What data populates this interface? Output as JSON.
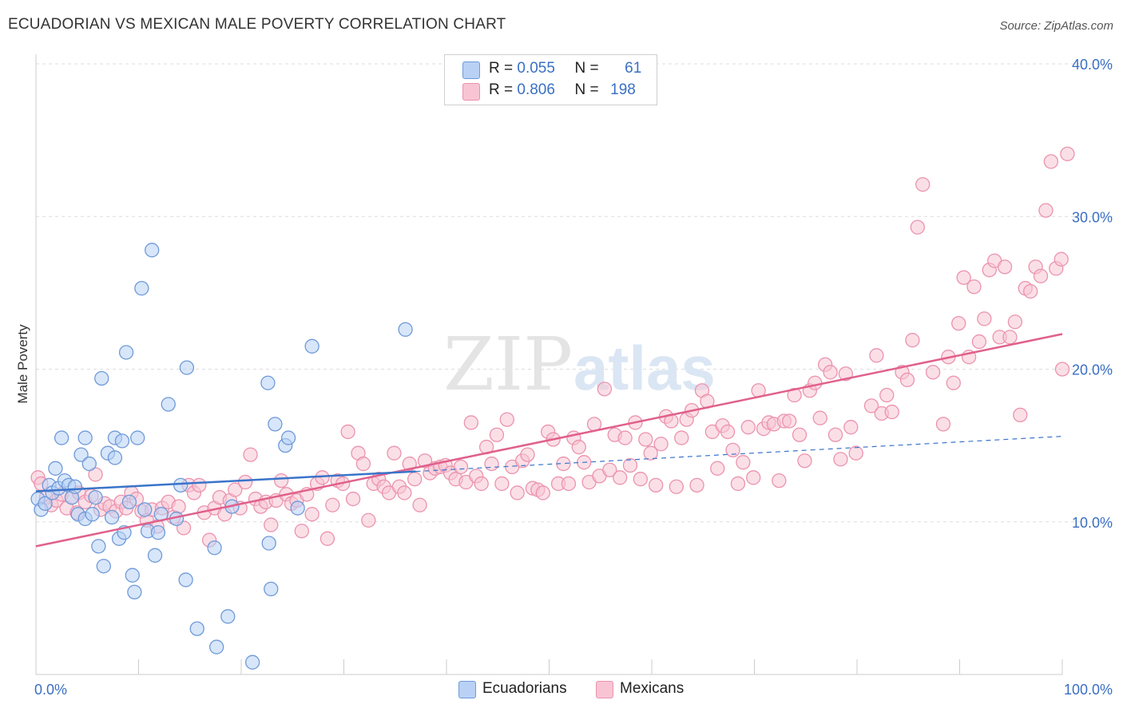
{
  "header": {
    "title": "ECUADORIAN VS MEXICAN MALE POVERTY CORRELATION CHART",
    "source": "Source: ZipAtlas.com"
  },
  "watermark": {
    "part1": "ZIP",
    "part2": "atlas"
  },
  "legend": {
    "rows": [
      {
        "r_label": "R =",
        "r_value": "0.055",
        "n_label": "N =",
        "n_value": "61"
      },
      {
        "r_label": "R =",
        "r_value": "0.806",
        "n_label": "N =",
        "n_value": "198"
      }
    ]
  },
  "bottom_legend": [
    "Ecuadorians",
    "Mexicans"
  ],
  "colors": {
    "ecuadorian_fill": "#b8d1f5",
    "ecuadorian_stroke": "#6f9ad8",
    "ecuadorian_line": "#3a74c9",
    "mexican_fill": "#f8c4d4",
    "mexican_stroke": "#eb93ae",
    "mexican_line": "#e0608c",
    "tick_label": "#3a6fc4",
    "grid": "#dddddd"
  },
  "chart_data": {
    "type": "scatter",
    "ylabel": "Male Poverty",
    "xlim": [
      0,
      100
    ],
    "ylim": [
      0,
      40
    ],
    "x_tick_labels": [
      "0.0%",
      "100.0%"
    ],
    "y_ticks": [
      10,
      20,
      30,
      40
    ],
    "y_tick_labels": [
      "10.0%",
      "20.0%",
      "30.0%",
      "40.0%"
    ],
    "grid": true,
    "series": [
      {
        "name": "Ecuadorians",
        "trend": {
          "x": [
            0,
            37
          ],
          "y": [
            12.0,
            13.3
          ],
          "dashed_extension": {
            "x": [
              37,
              100
            ],
            "y": [
              13.3,
              15.6
            ]
          }
        },
        "points": [
          [
            0.2,
            11.5
          ],
          [
            0.5,
            10.8
          ],
          [
            0.9,
            11.2
          ],
          [
            1.3,
            12.4
          ],
          [
            1.6,
            11.9
          ],
          [
            1.9,
            13.5
          ],
          [
            2.2,
            12.2
          ],
          [
            2.5,
            15.5
          ],
          [
            2.8,
            12.7
          ],
          [
            3.2,
            12.4
          ],
          [
            3.5,
            11.6
          ],
          [
            3.8,
            12.3
          ],
          [
            4.1,
            10.5
          ],
          [
            4.4,
            14.4
          ],
          [
            4.8,
            10.2
          ],
          [
            4.8,
            15.5
          ],
          [
            5.2,
            13.8
          ],
          [
            5.5,
            10.5
          ],
          [
            5.8,
            11.6
          ],
          [
            6.1,
            8.4
          ],
          [
            6.4,
            19.4
          ],
          [
            6.6,
            7.1
          ],
          [
            7.0,
            14.5
          ],
          [
            7.4,
            10.3
          ],
          [
            7.7,
            15.5
          ],
          [
            7.7,
            14.2
          ],
          [
            8.1,
            8.9
          ],
          [
            8.4,
            15.3
          ],
          [
            8.6,
            9.3
          ],
          [
            8.8,
            21.1
          ],
          [
            9.1,
            11.3
          ],
          [
            9.4,
            6.5
          ],
          [
            9.6,
            5.4
          ],
          [
            9.9,
            15.5
          ],
          [
            10.3,
            25.3
          ],
          [
            10.6,
            10.8
          ],
          [
            10.9,
            9.4
          ],
          [
            11.3,
            27.8
          ],
          [
            11.6,
            7.8
          ],
          [
            11.9,
            9.3
          ],
          [
            12.2,
            10.5
          ],
          [
            12.9,
            17.7
          ],
          [
            13.7,
            10.2
          ],
          [
            14.1,
            12.4
          ],
          [
            14.6,
            6.2
          ],
          [
            14.7,
            20.1
          ],
          [
            15.7,
            3.0
          ],
          [
            17.4,
            8.3
          ],
          [
            17.6,
            1.8
          ],
          [
            18.7,
            3.8
          ],
          [
            19.1,
            11.0
          ],
          [
            21.1,
            0.8
          ],
          [
            22.6,
            19.1
          ],
          [
            22.7,
            8.6
          ],
          [
            22.9,
            5.6
          ],
          [
            23.3,
            16.4
          ],
          [
            24.3,
            15.0
          ],
          [
            24.6,
            15.5
          ],
          [
            25.5,
            10.9
          ],
          [
            26.9,
            21.5
          ],
          [
            36.0,
            22.6
          ]
        ]
      },
      {
        "name": "Mexicans",
        "trend": {
          "x": [
            0,
            100
          ],
          "y": [
            8.4,
            22.3
          ]
        },
        "points": [
          [
            0.2,
            12.9
          ],
          [
            0.5,
            12.5
          ],
          [
            1.0,
            11.6
          ],
          [
            1.5,
            11.1
          ],
          [
            2.0,
            11.4
          ],
          [
            2.5,
            11.8
          ],
          [
            3.0,
            10.9
          ],
          [
            3.5,
            11.6
          ],
          [
            4.0,
            10.6
          ],
          [
            4.2,
            11.9
          ],
          [
            4.8,
            11.3
          ],
          [
            5.4,
            11.7
          ],
          [
            5.8,
            13.1
          ],
          [
            6.3,
            10.8
          ],
          [
            6.7,
            11.2
          ],
          [
            7.2,
            11.0
          ],
          [
            7.8,
            10.7
          ],
          [
            8.3,
            11.3
          ],
          [
            8.8,
            10.9
          ],
          [
            9.3,
            11.9
          ],
          [
            9.8,
            11.5
          ],
          [
            10.3,
            10.7
          ],
          [
            10.8,
            10.1
          ],
          [
            11.3,
            10.8
          ],
          [
            11.8,
            9.7
          ],
          [
            12.3,
            10.9
          ],
          [
            12.9,
            11.3
          ],
          [
            13.4,
            10.3
          ],
          [
            13.9,
            11.0
          ],
          [
            14.4,
            9.6
          ],
          [
            14.9,
            12.4
          ],
          [
            15.4,
            11.9
          ],
          [
            15.9,
            12.4
          ],
          [
            16.4,
            10.6
          ],
          [
            16.9,
            8.8
          ],
          [
            17.4,
            10.9
          ],
          [
            17.9,
            11.6
          ],
          [
            18.4,
            10.5
          ],
          [
            18.9,
            11.4
          ],
          [
            19.4,
            12.1
          ],
          [
            19.9,
            10.9
          ],
          [
            20.4,
            12.6
          ],
          [
            20.9,
            14.4
          ],
          [
            21.4,
            11.5
          ],
          [
            21.9,
            11.0
          ],
          [
            22.4,
            11.3
          ],
          [
            22.9,
            9.8
          ],
          [
            23.4,
            11.4
          ],
          [
            23.9,
            12.7
          ],
          [
            24.4,
            11.8
          ],
          [
            24.9,
            11.2
          ],
          [
            25.4,
            11.4
          ],
          [
            25.9,
            9.4
          ],
          [
            26.4,
            11.8
          ],
          [
            26.9,
            10.5
          ],
          [
            27.4,
            12.5
          ],
          [
            27.9,
            12.9
          ],
          [
            28.4,
            8.9
          ],
          [
            28.9,
            11.1
          ],
          [
            29.4,
            12.7
          ],
          [
            29.9,
            12.5
          ],
          [
            30.4,
            15.9
          ],
          [
            30.9,
            11.5
          ],
          [
            31.4,
            14.5
          ],
          [
            31.9,
            13.8
          ],
          [
            32.4,
            10.1
          ],
          [
            32.9,
            12.5
          ],
          [
            33.4,
            12.8
          ],
          [
            33.9,
            12.3
          ],
          [
            34.4,
            11.9
          ],
          [
            34.9,
            14.5
          ],
          [
            35.4,
            12.3
          ],
          [
            35.9,
            11.9
          ],
          [
            36.4,
            13.8
          ],
          [
            36.9,
            12.8
          ],
          [
            37.4,
            11.1
          ],
          [
            37.9,
            14.0
          ],
          [
            38.4,
            13.2
          ],
          [
            38.9,
            13.5
          ],
          [
            39.4,
            13.6
          ],
          [
            39.9,
            13.7
          ],
          [
            40.4,
            13.2
          ],
          [
            40.9,
            12.8
          ],
          [
            41.4,
            13.6
          ],
          [
            41.9,
            12.6
          ],
          [
            42.4,
            16.5
          ],
          [
            42.9,
            13.0
          ],
          [
            43.4,
            12.5
          ],
          [
            43.9,
            14.9
          ],
          [
            44.4,
            13.8
          ],
          [
            44.9,
            15.7
          ],
          [
            45.4,
            12.5
          ],
          [
            45.9,
            16.7
          ],
          [
            46.4,
            13.6
          ],
          [
            46.9,
            11.9
          ],
          [
            47.4,
            14.0
          ],
          [
            47.9,
            14.4
          ],
          [
            48.4,
            12.2
          ],
          [
            48.9,
            12.1
          ],
          [
            49.4,
            11.9
          ],
          [
            49.9,
            15.9
          ],
          [
            50.4,
            15.4
          ],
          [
            50.9,
            12.5
          ],
          [
            51.4,
            13.8
          ],
          [
            51.9,
            12.5
          ],
          [
            52.4,
            15.5
          ],
          [
            52.9,
            14.9
          ],
          [
            53.4,
            13.9
          ],
          [
            53.9,
            12.6
          ],
          [
            54.4,
            16.4
          ],
          [
            54.9,
            13.0
          ],
          [
            55.4,
            18.7
          ],
          [
            55.9,
            13.4
          ],
          [
            56.4,
            15.7
          ],
          [
            56.9,
            12.9
          ],
          [
            57.4,
            15.5
          ],
          [
            57.9,
            13.7
          ],
          [
            58.4,
            16.5
          ],
          [
            58.9,
            12.8
          ],
          [
            59.4,
            15.4
          ],
          [
            59.9,
            14.5
          ],
          [
            60.4,
            12.4
          ],
          [
            60.9,
            15.1
          ],
          [
            61.4,
            16.9
          ],
          [
            61.9,
            16.6
          ],
          [
            62.4,
            12.3
          ],
          [
            62.9,
            15.5
          ],
          [
            63.4,
            16.7
          ],
          [
            63.9,
            17.3
          ],
          [
            64.4,
            12.4
          ],
          [
            64.9,
            18.6
          ],
          [
            65.4,
            17.9
          ],
          [
            65.9,
            15.9
          ],
          [
            66.4,
            13.5
          ],
          [
            66.9,
            16.3
          ],
          [
            67.4,
            15.9
          ],
          [
            67.9,
            14.7
          ],
          [
            68.4,
            12.5
          ],
          [
            68.9,
            13.9
          ],
          [
            69.4,
            16.2
          ],
          [
            69.9,
            12.9
          ],
          [
            70.4,
            18.6
          ],
          [
            70.9,
            16.1
          ],
          [
            71.4,
            16.5
          ],
          [
            71.9,
            16.4
          ],
          [
            72.4,
            12.7
          ],
          [
            72.9,
            16.6
          ],
          [
            73.4,
            16.6
          ],
          [
            73.9,
            18.3
          ],
          [
            74.4,
            15.7
          ],
          [
            74.9,
            14.0
          ],
          [
            75.4,
            18.6
          ],
          [
            75.9,
            19.1
          ],
          [
            76.4,
            16.8
          ],
          [
            76.9,
            20.3
          ],
          [
            77.4,
            19.8
          ],
          [
            77.9,
            15.7
          ],
          [
            78.4,
            14.1
          ],
          [
            78.9,
            19.7
          ],
          [
            79.4,
            16.2
          ],
          [
            79.9,
            14.5
          ],
          [
            81.4,
            17.6
          ],
          [
            81.9,
            20.9
          ],
          [
            82.4,
            17.1
          ],
          [
            82.9,
            18.3
          ],
          [
            83.4,
            17.2
          ],
          [
            84.4,
            19.8
          ],
          [
            84.9,
            19.3
          ],
          [
            85.4,
            21.9
          ],
          [
            85.9,
            29.3
          ],
          [
            86.4,
            32.1
          ],
          [
            87.4,
            19.8
          ],
          [
            88.4,
            16.4
          ],
          [
            88.9,
            20.8
          ],
          [
            89.4,
            19.1
          ],
          [
            89.9,
            23.0
          ],
          [
            90.4,
            26.0
          ],
          [
            90.9,
            20.8
          ],
          [
            91.4,
            25.4
          ],
          [
            91.9,
            21.8
          ],
          [
            92.4,
            23.3
          ],
          [
            92.9,
            26.5
          ],
          [
            93.4,
            27.1
          ],
          [
            93.9,
            22.1
          ],
          [
            94.4,
            26.7
          ],
          [
            94.9,
            22.1
          ],
          [
            95.4,
            23.1
          ],
          [
            95.9,
            17.0
          ],
          [
            96.4,
            25.3
          ],
          [
            96.9,
            25.1
          ],
          [
            97.4,
            26.7
          ],
          [
            97.9,
            26.1
          ],
          [
            98.4,
            30.4
          ],
          [
            98.9,
            33.6
          ],
          [
            99.4,
            26.6
          ],
          [
            99.9,
            27.2
          ],
          [
            100.5,
            34.1
          ],
          [
            100.0,
            20.0
          ]
        ]
      }
    ]
  }
}
